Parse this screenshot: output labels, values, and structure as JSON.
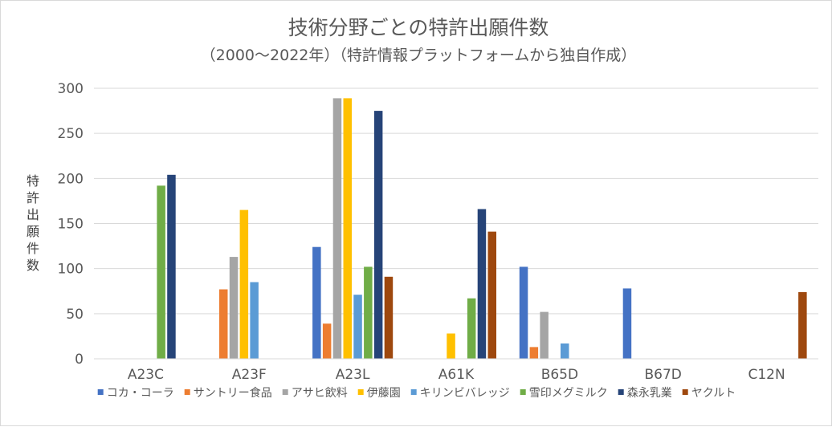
{
  "chart_data": {
    "type": "bar",
    "title": "技術分野ごとの特許出願件数",
    "subtitle": "（2000～2022年）（特許情報プラットフォームから独自作成）",
    "ylabel": "特許出願件数",
    "xlabel": "",
    "ylim": [
      0,
      300
    ],
    "yticks": [
      0,
      50,
      100,
      150,
      200,
      250,
      300
    ],
    "grid": true,
    "legend_position": "bottom",
    "categories": [
      "A23C",
      "A23F",
      "A23L",
      "A61K",
      "B65D",
      "B67D",
      "C12N"
    ],
    "series": [
      {
        "name": "コカ・コーラ",
        "color": "#4472c4",
        "values": [
          0,
          0,
          124,
          0,
          102,
          78,
          0
        ]
      },
      {
        "name": "サントリー食品",
        "color": "#ed7d31",
        "values": [
          0,
          77,
          39,
          0,
          13,
          0,
          0
        ]
      },
      {
        "name": "アサヒ飲料",
        "color": "#a5a5a5",
        "values": [
          0,
          113,
          289,
          0,
          52,
          0,
          0
        ]
      },
      {
        "name": "伊藤園",
        "color": "#ffc000",
        "values": [
          0,
          165,
          289,
          28,
          0,
          0,
          0
        ]
      },
      {
        "name": "キリンビバレッジ",
        "color": "#5b9bd5",
        "values": [
          0,
          85,
          71,
          0,
          17,
          0,
          0
        ]
      },
      {
        "name": "雪印メグミルク",
        "color": "#70ad47",
        "values": [
          192,
          0,
          102,
          67,
          0,
          0,
          0
        ]
      },
      {
        "name": "森永乳業",
        "color": "#264478",
        "values": [
          204,
          0,
          275,
          166,
          0,
          0,
          0
        ]
      },
      {
        "name": "ヤクルト",
        "color": "#9e480e",
        "values": [
          0,
          0,
          91,
          141,
          0,
          0,
          74
        ]
      }
    ]
  }
}
